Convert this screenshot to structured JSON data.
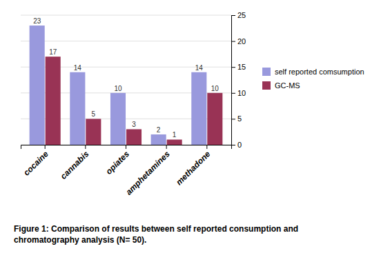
{
  "chart_data": {
    "type": "bar",
    "caption": "Figure 1: Comparison of results between self reported consumption and\nchromatography analysis (N= 50).",
    "categories": [
      "cocaine",
      "cannabis",
      "opiates",
      "amphetamines",
      "methadone"
    ],
    "series": [
      {
        "name": "self reported comsumption",
        "color": "#9999DD",
        "values": [
          23,
          14,
          10,
          2,
          14
        ]
      },
      {
        "name": "GC-MS",
        "color": "#993355",
        "values": [
          17,
          5,
          3,
          1,
          10
        ]
      }
    ],
    "ylim": [
      0,
      25
    ],
    "yticks": [
      0,
      5,
      10,
      15,
      20,
      25
    ],
    "grid": true,
    "data_labels": true,
    "legend": "right"
  }
}
